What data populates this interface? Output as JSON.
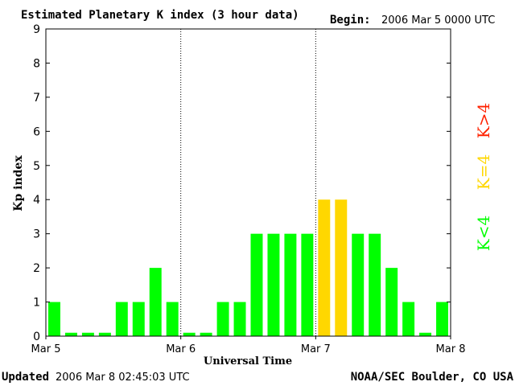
{
  "header": {
    "title": "Estimated Planetary K index (3 hour data)",
    "begin_label": "Begin:",
    "begin_value": "2006 Mar 5 0000 UTC"
  },
  "footer": {
    "updated_label": "Updated",
    "updated_value": "2006 Mar  8 02:45:03 UTC",
    "source": "NOAA/SEC Boulder, CO USA"
  },
  "legend": {
    "high": "K>4",
    "equal": "K=4",
    "low": "K<4"
  },
  "colors": {
    "low": "#00ff00",
    "equal": "#ffd700",
    "high": "#ff2200",
    "axis": "#000000",
    "divider": "#000000"
  },
  "chart_data": {
    "type": "bar",
    "title": "Estimated Planetary K index (3 hour data)",
    "xlabel": "Universal Time",
    "ylabel": "Kp index",
    "ylim": [
      0,
      9
    ],
    "yticks": [
      "0",
      "1",
      "2",
      "3",
      "4",
      "5",
      "6",
      "7",
      "8",
      "9"
    ],
    "xticks": [
      "Mar 5",
      "Mar 6",
      "Mar 7",
      "Mar 8"
    ],
    "grid": false,
    "values": [
      1,
      0,
      0,
      0,
      1,
      1,
      2,
      1,
      0,
      0,
      1,
      1,
      3,
      3,
      3,
      3,
      4,
      4,
      3,
      3,
      2,
      1,
      0,
      1
    ]
  }
}
